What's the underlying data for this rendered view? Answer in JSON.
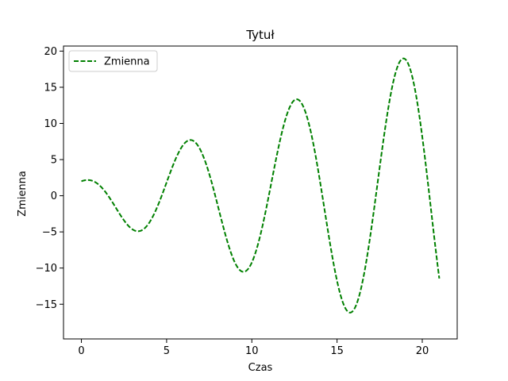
{
  "chart_data": {
    "type": "line",
    "title": "Tytuł",
    "xlabel": "Czas",
    "ylabel": "Zmienna",
    "xlim": [
      -1.05,
      22.05
    ],
    "ylim": [
      -19.8,
      20.7
    ],
    "xticks": [
      0,
      5,
      10,
      15,
      20
    ],
    "yticks": [
      -15,
      -10,
      -5,
      0,
      5,
      10,
      15,
      20
    ],
    "xtick_labels": [
      "0",
      "5",
      "10",
      "15",
      "20"
    ],
    "ytick_labels": [
      "−15",
      "−10",
      "−5",
      "0",
      "5",
      "10",
      "15",
      "20"
    ],
    "grid": false,
    "legend": {
      "position": "upper-left"
    },
    "series": [
      {
        "name": "Zmienna",
        "color": "#008000",
        "style": "dashed",
        "formula": "y = (2 + 0.9x) * cos(x)",
        "x_range": [
          0,
          21
        ]
      }
    ]
  }
}
